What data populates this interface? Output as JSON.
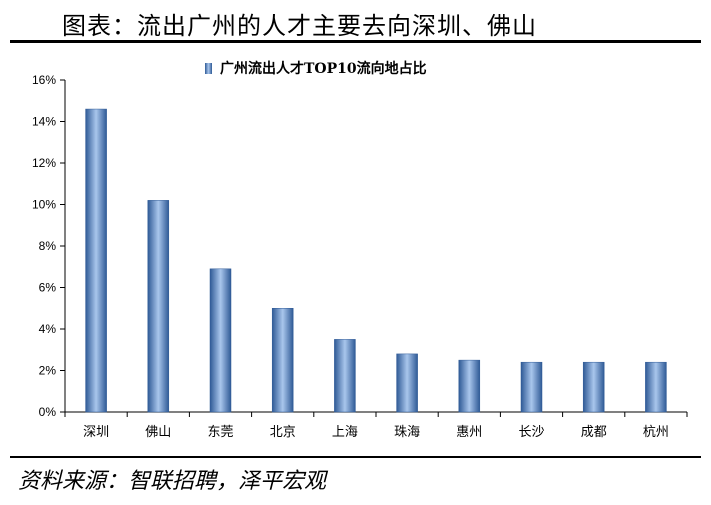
{
  "header": {
    "title": "图表：流出广州的人才主要去向深圳、佛山"
  },
  "footer": {
    "source": "资料来源：智联招聘，泽平宏观"
  },
  "colors": {
    "bar": "#5b8ac9",
    "bar_dark": "#2f5a96",
    "bar_light": "#a9c6ec",
    "axis": "#000000"
  },
  "chart_data": {
    "type": "bar",
    "title": "广州流出人才TOP10流向地占比",
    "legend": "top-center",
    "grid": false,
    "categories": [
      "深圳",
      "佛山",
      "东莞",
      "北京",
      "上海",
      "珠海",
      "惠州",
      "长沙",
      "成都",
      "杭州"
    ],
    "series": [
      {
        "name": "广州流出人才TOP10流向地占比",
        "values": [
          14.6,
          10.2,
          6.9,
          5.0,
          3.5,
          2.8,
          2.5,
          2.4,
          2.4,
          2.4
        ]
      }
    ],
    "ylim": [
      0,
      16
    ],
    "yticks": [
      0,
      2,
      4,
      6,
      8,
      10,
      12,
      14,
      16
    ],
    "ytick_labels": [
      "0%",
      "2%",
      "4%",
      "6%",
      "8%",
      "10%",
      "12%",
      "14%",
      "16%"
    ],
    "xlabel": "",
    "ylabel": ""
  }
}
